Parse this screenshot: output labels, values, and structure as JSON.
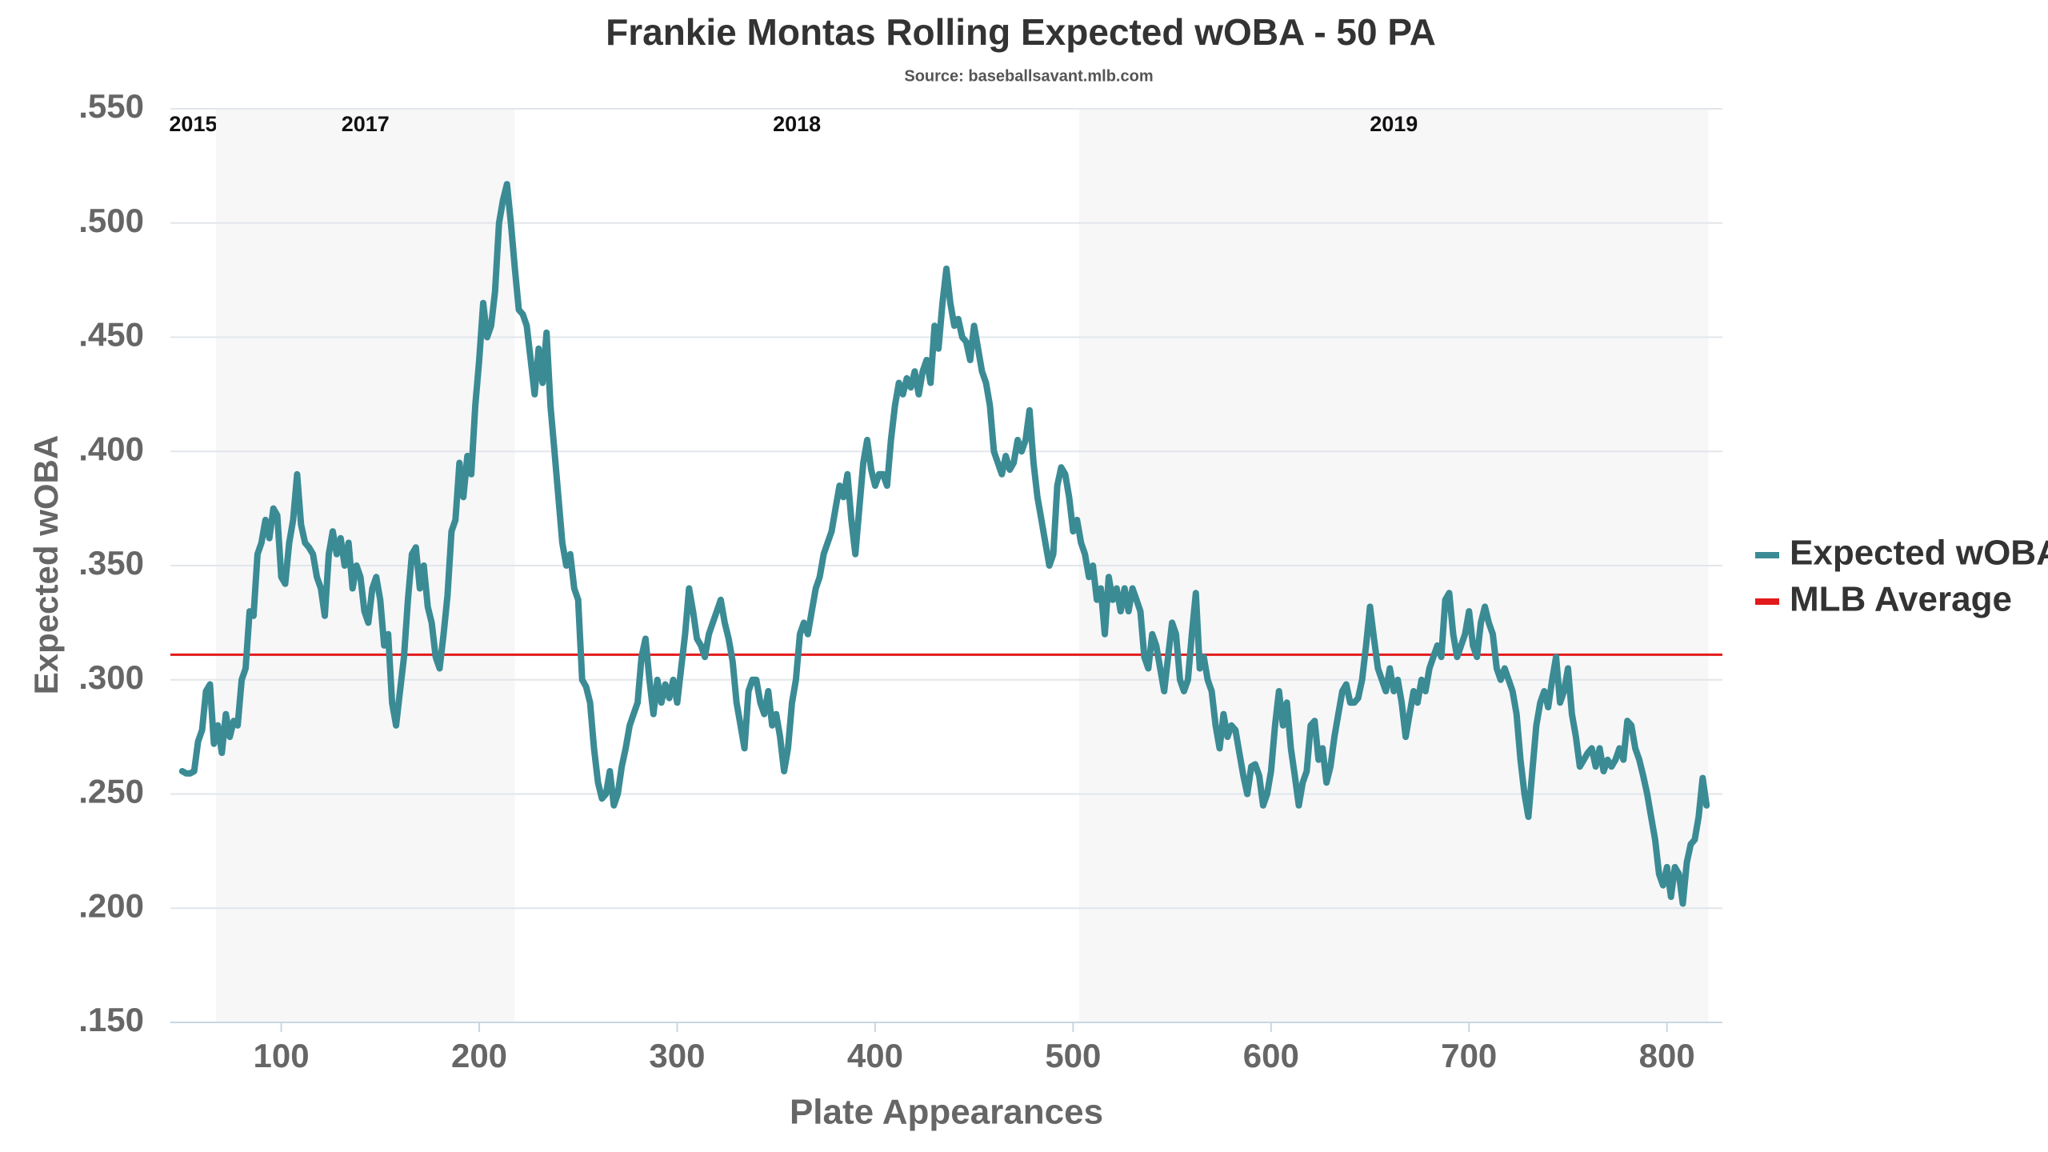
{
  "chart_data": {
    "type": "line",
    "title": "Frankie Montas Rolling Expected wOBA - 50 PA",
    "subtitle": "Source: baseballsavant.mlb.com",
    "x_label": "Plate Appearances",
    "y_label": "Expected wOBA",
    "xlim": [
      44,
      828
    ],
    "ylim": [
      0.15,
      0.55
    ],
    "xticks": [
      100,
      200,
      300,
      400,
      500,
      600,
      700,
      800
    ],
    "yticks": [
      {
        "value": 0.15,
        "label": ".150"
      },
      {
        "value": 0.2,
        "label": ".200"
      },
      {
        "value": 0.25,
        "label": ".250"
      },
      {
        "value": 0.3,
        "label": ".300"
      },
      {
        "value": 0.35,
        "label": ".350"
      },
      {
        "value": 0.4,
        "label": ".400"
      },
      {
        "value": 0.45,
        "label": ".450"
      },
      {
        "value": 0.5,
        "label": ".500"
      },
      {
        "value": 0.55,
        "label": ".550"
      }
    ],
    "grid": true,
    "legend": "right",
    "periods": [
      {
        "label": "2015",
        "start": 44,
        "end": 67,
        "shaded": false
      },
      {
        "label": "2017",
        "start": 67,
        "end": 218,
        "shaded": true
      },
      {
        "label": "2018",
        "start": 218,
        "end": 503,
        "shaded": false
      },
      {
        "label": "2019",
        "start": 503,
        "end": 821,
        "shaded": true
      }
    ],
    "reference_lines": [
      {
        "name": "MLB Average",
        "value": 0.311,
        "color": "#e31a1c"
      }
    ],
    "x": [
      50,
      52,
      54,
      56,
      58,
      60,
      62,
      64,
      66,
      68,
      70,
      72,
      74,
      76,
      78,
      80,
      82,
      84,
      86,
      88,
      90,
      92,
      94,
      96,
      98,
      100,
      102,
      104,
      106,
      108,
      110,
      112,
      114,
      116,
      118,
      120,
      122,
      124,
      126,
      128,
      130,
      132,
      134,
      136,
      138,
      140,
      142,
      144,
      146,
      148,
      150,
      152,
      154,
      156,
      158,
      160,
      162,
      164,
      166,
      168,
      170,
      172,
      174,
      176,
      178,
      180,
      182,
      184,
      186,
      188,
      190,
      192,
      194,
      196,
      198,
      200,
      202,
      204,
      206,
      208,
      210,
      212,
      214,
      216,
      218,
      220,
      222,
      224,
      226,
      228,
      230,
      232,
      234,
      236,
      238,
      240,
      242,
      244,
      246,
      248,
      250,
      252,
      254,
      256,
      258,
      260,
      262,
      264,
      266,
      268,
      270,
      272,
      274,
      276,
      278,
      280,
      282,
      284,
      286,
      288,
      290,
      292,
      294,
      296,
      298,
      300,
      302,
      304,
      306,
      308,
      310,
      312,
      314,
      316,
      318,
      320,
      322,
      324,
      326,
      328,
      330,
      332,
      334,
      336,
      338,
      340,
      342,
      344,
      346,
      348,
      350,
      352,
      354,
      356,
      358,
      360,
      362,
      364,
      366,
      368,
      370,
      372,
      374,
      376,
      378,
      380,
      382,
      384,
      386,
      388,
      390,
      392,
      394,
      396,
      398,
      400,
      402,
      404,
      406,
      408,
      410,
      412,
      414,
      416,
      418,
      420,
      422,
      424,
      426,
      428,
      430,
      432,
      434,
      436,
      438,
      440,
      442,
      444,
      446,
      448,
      450,
      452,
      454,
      456,
      458,
      460,
      462,
      464,
      466,
      468,
      470,
      472,
      474,
      476,
      478,
      480,
      482,
      484,
      486,
      488,
      490,
      492,
      494,
      496,
      498,
      500,
      502,
      504,
      506,
      508,
      510,
      512,
      514,
      516,
      518,
      520,
      522,
      524,
      526,
      528,
      530,
      532,
      534,
      536,
      538,
      540,
      542,
      544,
      546,
      548,
      550,
      552,
      554,
      556,
      558,
      560,
      562,
      564,
      566,
      568,
      570,
      572,
      574,
      576,
      578,
      580,
      582,
      584,
      586,
      588,
      590,
      592,
      594,
      596,
      598,
      600,
      602,
      604,
      606,
      608,
      610,
      612,
      614,
      616,
      618,
      620,
      622,
      624,
      626,
      628,
      630,
      632,
      634,
      636,
      638,
      640,
      642,
      644,
      646,
      648,
      650,
      652,
      654,
      656,
      658,
      660,
      662,
      664,
      666,
      668,
      670,
      672,
      674,
      676,
      678,
      680,
      682,
      684,
      686,
      688,
      690,
      692,
      694,
      696,
      698,
      700,
      702,
      704,
      706,
      708,
      710,
      712,
      714,
      716,
      718,
      720,
      722,
      724,
      726,
      728,
      730,
      732,
      734,
      736,
      738,
      740,
      742,
      744,
      746,
      748,
      750,
      752,
      754,
      756,
      758,
      760,
      762,
      764,
      766,
      768,
      770,
      772,
      774,
      776,
      778,
      780,
      782,
      784,
      786,
      788,
      790,
      792,
      794,
      796,
      798,
      800,
      802,
      804,
      806,
      808,
      810,
      812,
      814,
      816,
      818,
      820
    ],
    "series": [
      {
        "name": "Expected wOBA",
        "color": "#3b8b95",
        "values": [
          0.26,
          0.259,
          0.259,
          0.26,
          0.273,
          0.278,
          0.295,
          0.298,
          0.272,
          0.28,
          0.268,
          0.285,
          0.275,
          0.282,
          0.28,
          0.3,
          0.305,
          0.33,
          0.328,
          0.355,
          0.36,
          0.37,
          0.362,
          0.375,
          0.372,
          0.345,
          0.342,
          0.36,
          0.37,
          0.39,
          0.368,
          0.36,
          0.358,
          0.355,
          0.345,
          0.34,
          0.328,
          0.355,
          0.365,
          0.355,
          0.362,
          0.35,
          0.36,
          0.34,
          0.35,
          0.345,
          0.33,
          0.325,
          0.34,
          0.345,
          0.335,
          0.315,
          0.32,
          0.29,
          0.28,
          0.295,
          0.31,
          0.335,
          0.355,
          0.358,
          0.34,
          0.35,
          0.332,
          0.325,
          0.31,
          0.305,
          0.32,
          0.337,
          0.365,
          0.37,
          0.395,
          0.38,
          0.398,
          0.39,
          0.42,
          0.44,
          0.465,
          0.45,
          0.455,
          0.47,
          0.5,
          0.51,
          0.517,
          0.5,
          0.48,
          0.462,
          0.46,
          0.455,
          0.44,
          0.425,
          0.445,
          0.43,
          0.452,
          0.42,
          0.4,
          0.38,
          0.36,
          0.35,
          0.355,
          0.34,
          0.335,
          0.3,
          0.297,
          0.29,
          0.27,
          0.255,
          0.248,
          0.25,
          0.26,
          0.245,
          0.25,
          0.262,
          0.27,
          0.28,
          0.285,
          0.29,
          0.31,
          0.318,
          0.3,
          0.285,
          0.3,
          0.29,
          0.298,
          0.292,
          0.3,
          0.29,
          0.305,
          0.32,
          0.34,
          0.33,
          0.318,
          0.315,
          0.31,
          0.32,
          0.325,
          0.33,
          0.335,
          0.325,
          0.318,
          0.308,
          0.29,
          0.28,
          0.27,
          0.295,
          0.3,
          0.3,
          0.29,
          0.285,
          0.295,
          0.28,
          0.285,
          0.275,
          0.26,
          0.27,
          0.29,
          0.3,
          0.32,
          0.325,
          0.32,
          0.33,
          0.34,
          0.345,
          0.355,
          0.36,
          0.365,
          0.375,
          0.385,
          0.38,
          0.39,
          0.37,
          0.355,
          0.375,
          0.395,
          0.405,
          0.392,
          0.385,
          0.39,
          0.39,
          0.385,
          0.405,
          0.42,
          0.43,
          0.425,
          0.432,
          0.428,
          0.435,
          0.425,
          0.435,
          0.44,
          0.43,
          0.455,
          0.445,
          0.465,
          0.48,
          0.465,
          0.455,
          0.458,
          0.45,
          0.448,
          0.44,
          0.455,
          0.445,
          0.435,
          0.43,
          0.42,
          0.4,
          0.395,
          0.39,
          0.398,
          0.392,
          0.395,
          0.405,
          0.4,
          0.405,
          0.418,
          0.395,
          0.38,
          0.37,
          0.36,
          0.35,
          0.355,
          0.385,
          0.393,
          0.39,
          0.38,
          0.365,
          0.37,
          0.36,
          0.355,
          0.345,
          0.35,
          0.335,
          0.34,
          0.32,
          0.345,
          0.335,
          0.34,
          0.33,
          0.34,
          0.33,
          0.34,
          0.335,
          0.33,
          0.31,
          0.305,
          0.32,
          0.315,
          0.305,
          0.295,
          0.31,
          0.325,
          0.32,
          0.3,
          0.295,
          0.3,
          0.32,
          0.338,
          0.305,
          0.31,
          0.3,
          0.295,
          0.28,
          0.27,
          0.285,
          0.275,
          0.28,
          0.278,
          0.268,
          0.258,
          0.25,
          0.262,
          0.263,
          0.258,
          0.245,
          0.25,
          0.26,
          0.28,
          0.295,
          0.28,
          0.29,
          0.27,
          0.258,
          0.245,
          0.255,
          0.26,
          0.28,
          0.282,
          0.265,
          0.27,
          0.255,
          0.262,
          0.275,
          0.285,
          0.295,
          0.298,
          0.29,
          0.29,
          0.292,
          0.3,
          0.315,
          0.332,
          0.318,
          0.305,
          0.3,
          0.295,
          0.305,
          0.295,
          0.3,
          0.29,
          0.275,
          0.285,
          0.295,
          0.29,
          0.3,
          0.295,
          0.305,
          0.31,
          0.315,
          0.31,
          0.335,
          0.338,
          0.32,
          0.31,
          0.315,
          0.32,
          0.33,
          0.315,
          0.31,
          0.325,
          0.332,
          0.325,
          0.32,
          0.305,
          0.3,
          0.305,
          0.3,
          0.295,
          0.285,
          0.265,
          0.25,
          0.24,
          0.26,
          0.28,
          0.29,
          0.295,
          0.288,
          0.3,
          0.31,
          0.29,
          0.295,
          0.305,
          0.285,
          0.275,
          0.262,
          0.265,
          0.268,
          0.27,
          0.262,
          0.27,
          0.26,
          0.265,
          0.262,
          0.265,
          0.27,
          0.265,
          0.282,
          0.28,
          0.27,
          0.265,
          0.258,
          0.25,
          0.24,
          0.23,
          0.215,
          0.21,
          0.218,
          0.205,
          0.218,
          0.215,
          0.202,
          0.22,
          0.228,
          0.23,
          0.24,
          0.257,
          0.245
        ]
      }
    ]
  }
}
